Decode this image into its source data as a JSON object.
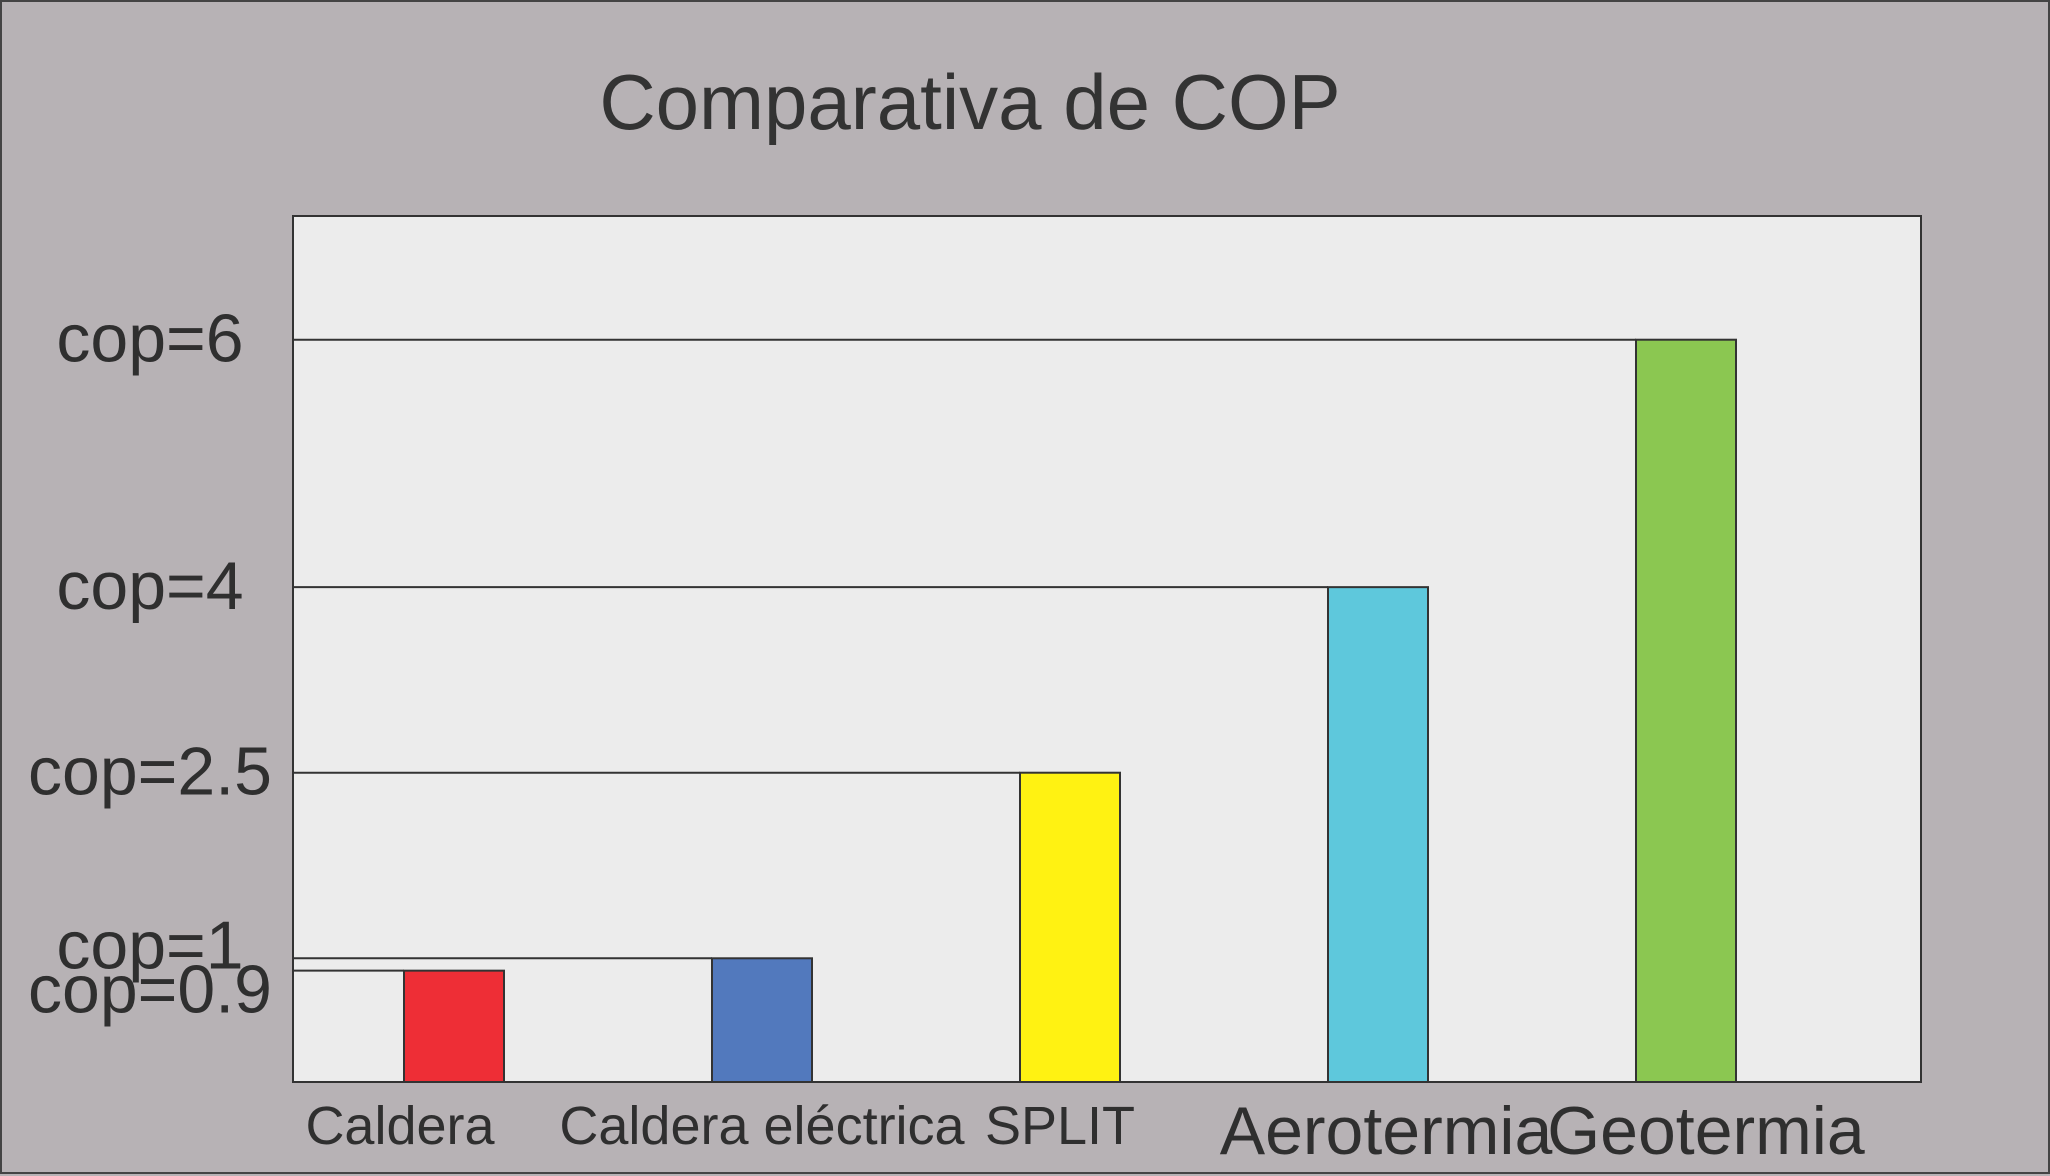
{
  "chart_data": {
    "type": "bar",
    "title": "Comparativa de COP",
    "xlabel": "",
    "ylabel": "",
    "categories": [
      "Caldera",
      "Caldera eléctrica",
      "SPLIT",
      "Aerotermia",
      "Geotermia"
    ],
    "values": [
      0.9,
      1,
      2.5,
      4,
      6
    ],
    "ytick_labels": [
      "cop=0.9",
      "cop=1",
      "cop=2.5",
      "cop=4",
      "cop=6"
    ],
    "ylim": [
      0,
      7
    ],
    "grid": false,
    "legend": "none",
    "colors": [
      "#ee2e36",
      "#5279bd",
      "#fff212",
      "#5ec8dc",
      "#8bc751"
    ],
    "plot_background": "#ececec",
    "page_background": "#b7b2b5"
  }
}
